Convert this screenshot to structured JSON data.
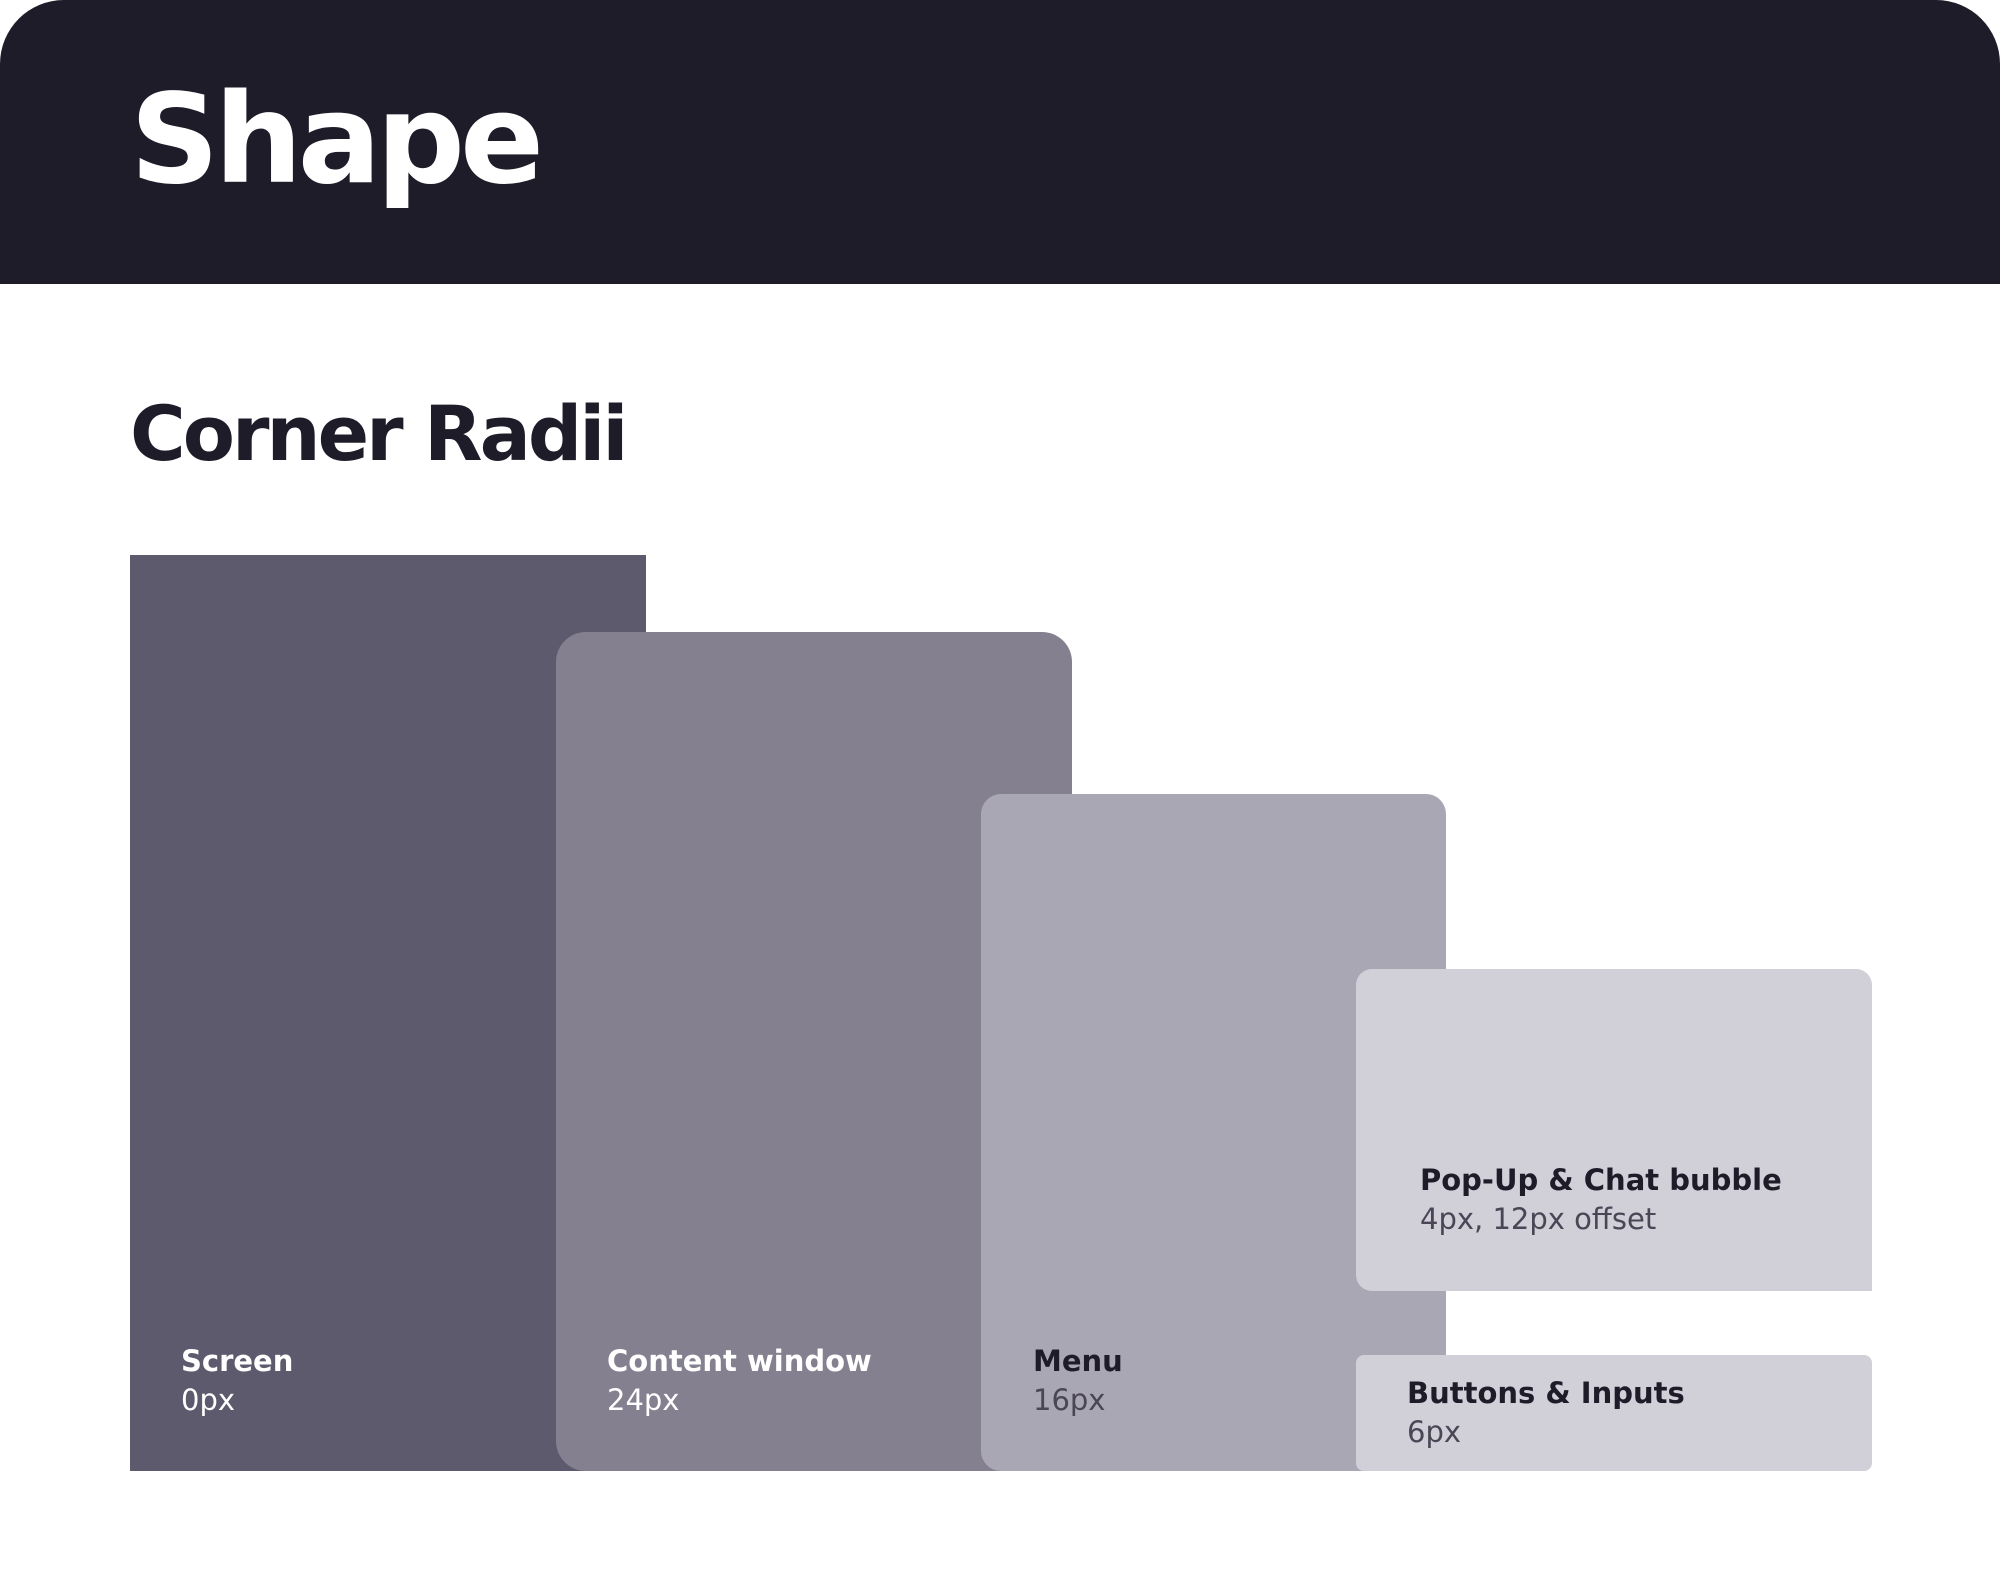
{
  "header": {
    "title": "Shape"
  },
  "section": {
    "title": "Corner Radii"
  },
  "items": [
    {
      "name": "Screen",
      "value": "0px",
      "color": "#5e5a6e"
    },
    {
      "name": "Content window",
      "value": "24px",
      "color": "#85808f"
    },
    {
      "name": "Menu",
      "value": "16px",
      "color": "#aaa7b4"
    },
    {
      "name": "Pop-Up & Chat bubble",
      "value": "4px, 12px offset",
      "color": "#d1cfd8"
    },
    {
      "name": "Buttons & Inputs",
      "value": "6px",
      "color": "#d1cfd8"
    }
  ],
  "colors": {
    "header_bg": "#1e1c29",
    "text_dark": "#1e1c29",
    "text_light": "#ffffff"
  }
}
